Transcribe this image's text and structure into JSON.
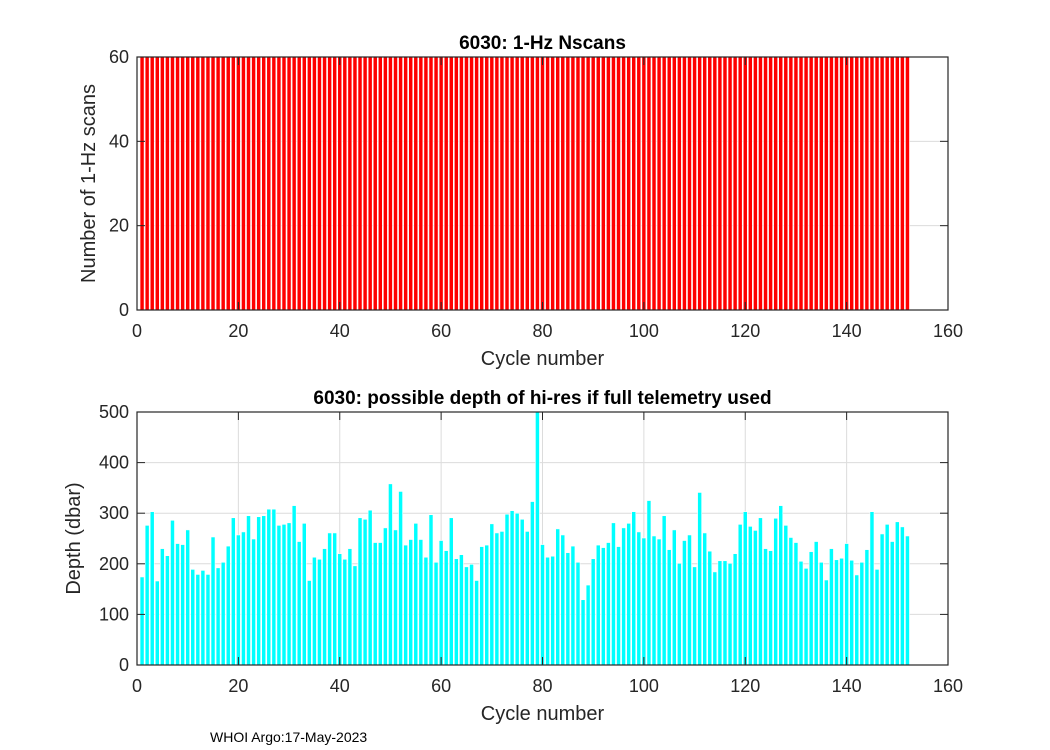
{
  "chart_data": [
    {
      "type": "bar",
      "title": "6030: 1-Hz Nscans",
      "xlabel": "Cycle number",
      "ylabel": "Number of 1-Hz scans",
      "xlim": [
        0,
        160
      ],
      "ylim": [
        0,
        60
      ],
      "xticks": [
        0,
        20,
        40,
        60,
        80,
        100,
        120,
        140,
        160
      ],
      "yticks": [
        0,
        20,
        40,
        60
      ],
      "grid": true,
      "color": "#ff0000",
      "x_start": 1,
      "count": 152,
      "constant_value": 60
    },
    {
      "type": "bar",
      "title": "6030: possible depth of hi-res if full telemetry used",
      "xlabel": "Cycle number",
      "ylabel": "Depth (dbar)",
      "xlim": [
        0,
        160
      ],
      "ylim": [
        0,
        500
      ],
      "xticks": [
        0,
        20,
        40,
        60,
        80,
        100,
        120,
        140,
        160
      ],
      "yticks": [
        0,
        100,
        200,
        300,
        400,
        500
      ],
      "grid": true,
      "color": "#00ffff",
      "x_start": 1,
      "values": [
        174,
        276,
        303,
        166,
        230,
        216,
        286,
        240,
        238,
        267,
        189,
        179,
        187,
        179,
        253,
        192,
        203,
        235,
        291,
        257,
        263,
        295,
        249,
        293,
        295,
        308,
        308,
        276,
        278,
        281,
        315,
        244,
        280,
        167,
        213,
        209,
        230,
        261,
        261,
        220,
        209,
        230,
        196,
        291,
        288,
        306,
        242,
        242,
        271,
        358,
        267,
        343,
        237,
        248,
        280,
        248,
        213,
        297,
        203,
        246,
        226,
        291,
        210,
        218,
        194,
        199,
        167,
        234,
        237,
        279,
        261,
        264,
        298,
        305,
        300,
        288,
        264,
        323,
        500,
        238,
        213,
        215,
        269,
        257,
        222,
        235,
        203,
        129,
        158,
        210,
        237,
        232,
        242,
        281,
        234,
        271,
        280,
        303,
        263,
        251,
        325,
        255,
        249,
        295,
        228,
        267,
        201,
        246,
        257,
        194,
        341,
        261,
        225,
        184,
        206,
        206,
        201,
        220,
        278,
        303,
        274,
        266,
        291,
        230,
        226,
        290,
        315,
        276,
        252,
        242,
        205,
        191,
        224,
        244,
        203,
        168,
        230,
        208,
        211,
        240,
        207,
        178,
        203,
        228,
        303,
        189,
        259,
        278,
        244,
        283,
        273,
        255
      ]
    }
  ],
  "footer": "WHOI Argo:17-May-2023"
}
